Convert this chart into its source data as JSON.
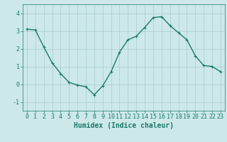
{
  "x": [
    0,
    1,
    2,
    3,
    4,
    5,
    6,
    7,
    8,
    9,
    10,
    11,
    12,
    13,
    14,
    15,
    16,
    17,
    18,
    19,
    20,
    21,
    22,
    23
  ],
  "y": [
    3.1,
    3.05,
    2.1,
    1.2,
    0.6,
    0.1,
    -0.05,
    -0.15,
    -0.6,
    -0.1,
    0.7,
    1.8,
    2.5,
    2.7,
    3.2,
    3.75,
    3.8,
    3.3,
    2.9,
    2.5,
    1.6,
    1.05,
    1.0,
    0.7
  ],
  "line_color": "#1a7a6a",
  "marker": "+",
  "marker_size": 3,
  "bg_color": "#cce8e8",
  "grid_color": "#aacccc",
  "xlabel": "Humidex (Indice chaleur)",
  "xlabel_fontsize": 7,
  "tick_fontsize": 6,
  "ylim": [
    -1.5,
    4.5
  ],
  "yticks": [
    -1,
    0,
    1,
    2,
    3,
    4
  ],
  "xlim": [
    -0.5,
    23.5
  ],
  "linewidth": 1.0
}
